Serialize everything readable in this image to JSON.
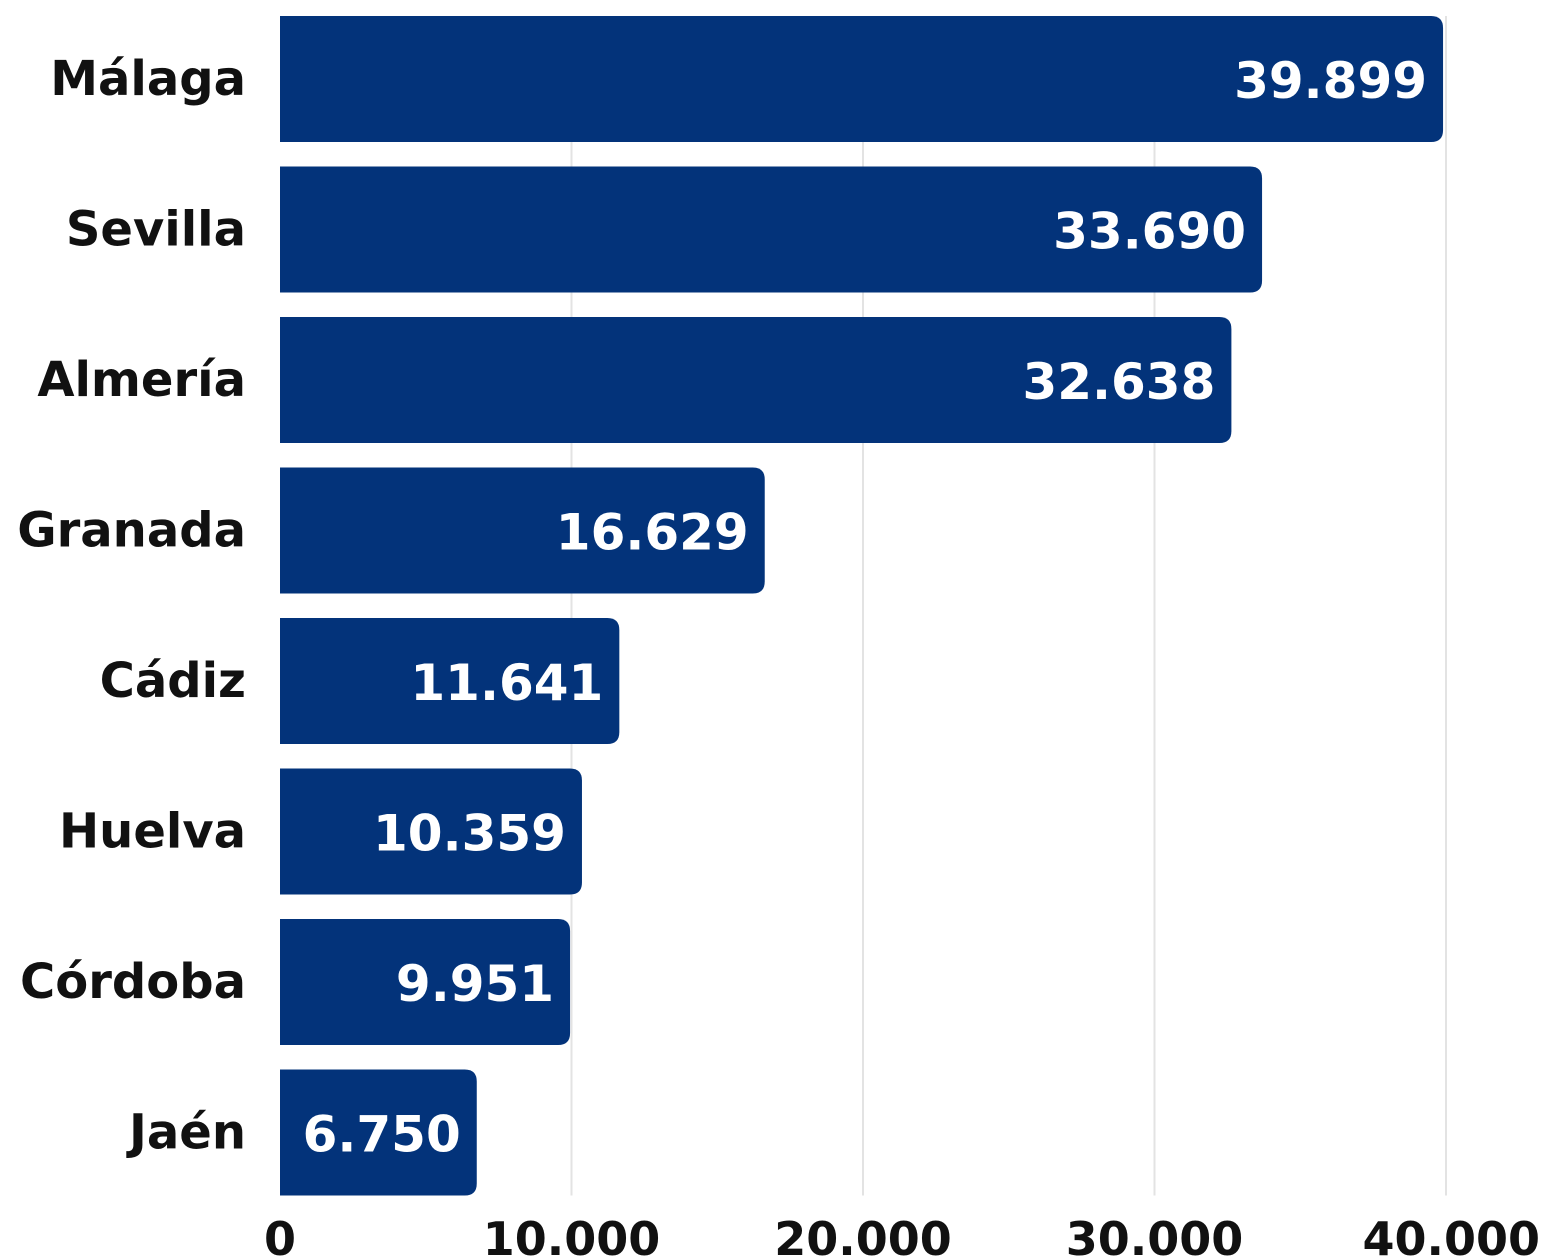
{
  "chart_data": {
    "type": "bar",
    "orientation": "horizontal",
    "categories": [
      "Málaga",
      "Sevilla",
      "Almería",
      "Granada",
      "Cádiz",
      "Huelva",
      "Córdoba",
      "Jaén"
    ],
    "values": [
      39899,
      33690,
      32638,
      16629,
      11641,
      10359,
      9951,
      6750
    ],
    "value_labels": [
      "39.899",
      "33.690",
      "32.638",
      "16.629",
      "11.641",
      "10.359",
      "9.951",
      "6.750"
    ],
    "xlim": [
      0,
      40000
    ],
    "xticks": [
      0,
      10000,
      20000,
      30000,
      40000
    ],
    "xtick_labels": [
      "0",
      "10.000",
      "20.000",
      "30.000",
      "40.000"
    ],
    "grid": true,
    "legend": "none",
    "bar_color": "#03337a",
    "label_color": "#ffffff",
    "title": "",
    "xlabel": "",
    "ylabel": ""
  }
}
